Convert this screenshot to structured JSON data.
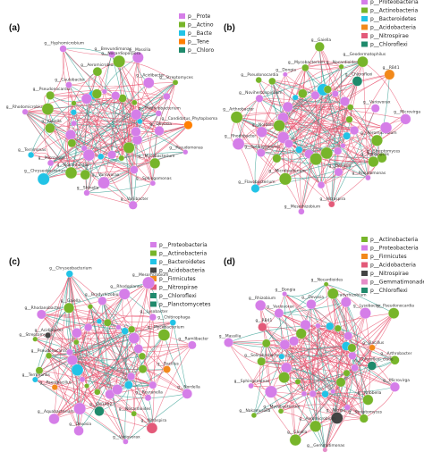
{
  "colors": {
    "proteobacteria": "#d57ee8",
    "actinobacteria": "#77b52a",
    "bacteroidetes": "#22c3e6",
    "acidobacteria": "#444444",
    "firmicutes": "#f2891b",
    "nitrospirae": "#e35a79",
    "chloroflexi": "#1f8a6c",
    "tenericutes": "#ff7f00",
    "gemmatimonadetes": "#e58ec8",
    "planctomycetes": "#1f8a6c",
    "edge_positive": "#e8536f",
    "edge_negative": "#2a9a8c"
  },
  "panels": [
    {
      "label": "(a)",
      "legend": [
        {
          "text": "p__Prote",
          "color": "proteobacteria"
        },
        {
          "text": "p__Actino",
          "color": "actinobacteria"
        },
        {
          "text": "p__Bacte",
          "color": "bacteroidetes"
        },
        {
          "text": "p__Tene",
          "color": "tenericutes"
        },
        {
          "text": "p__Chloro",
          "color": "chloroflexi"
        }
      ],
      "nodes": [
        {
          "text": "Candidatus_Phytoplasma",
          "color": "tenericutes"
        },
        {
          "text": "Chryseobacterium",
          "color": "bacteroidetes"
        },
        {
          "text": "Brevundimonas",
          "color": "proteobacteria"
        },
        {
          "text": "Sphingomonas",
          "color": "proteobacteria"
        },
        {
          "text": "Rhodomicrobium",
          "color": "proteobacteria"
        },
        {
          "text": "Streptomyces",
          "color": "actinobacteria"
        },
        {
          "text": "Shinella",
          "color": "proteobacteria"
        },
        {
          "text": "Hyphomicrobium",
          "color": "proteobacteria"
        },
        {
          "text": "Pseudomonas",
          "color": "proteobacteria"
        },
        {
          "text": "Terrimonas",
          "color": "bacteroidetes"
        },
        {
          "text": "Massilia",
          "color": "proteobacteria"
        },
        {
          "text": "Variibacter",
          "color": "proteobacteria"
        },
        {
          "text": "Pseudonocardia",
          "color": "actinobacteria"
        },
        {
          "text": "Methylobacterium",
          "color": "proteobacteria"
        },
        {
          "text": "Nocardioides",
          "color": "actinobacteria"
        },
        {
          "text": "Aeromicrobium",
          "color": "actinobacteria"
        },
        {
          "text": "Mycobacterium",
          "color": "actinobacteria"
        },
        {
          "text": "Gaiella",
          "color": "actinobacteria"
        },
        {
          "text": "Acidibacter",
          "color": "proteobacteria"
        },
        {
          "text": "Variovorax",
          "color": "proteobacteria"
        },
        {
          "text": "Caulobacter",
          "color": "proteobacteria"
        },
        {
          "text": "Devosia",
          "color": "proteobacteria"
        },
        {
          "text": "Microvirga",
          "color": "proteobacteria"
        },
        {
          "text": "Nocardioporpora",
          "color": "actinobacteria"
        }
      ]
    },
    {
      "label": "(b)",
      "legend": [
        {
          "text": "p__Proteobacteria",
          "color": "proteobacteria"
        },
        {
          "text": "p__Actinobacteria",
          "color": "actinobacteria"
        },
        {
          "text": "p__Bacteroidetes",
          "color": "bacteroidetes"
        },
        {
          "text": "p__Acidobacteria",
          "color": "firmicutes"
        },
        {
          "text": "p__Nitrospirae",
          "color": "nitrospirae"
        },
        {
          "text": "p__Chloroflexi",
          "color": "chloroflexi"
        }
      ],
      "nodes": [
        {
          "text": "Streptomyces",
          "color": "actinobacteria"
        },
        {
          "text": "Rhodobacter",
          "color": "proteobacteria"
        },
        {
          "text": "Geodermatophilus",
          "color": "actinobacteria"
        },
        {
          "text": "Nitrospira",
          "color": "nitrospirae"
        },
        {
          "text": "Pseudonocardia",
          "color": "actinobacteria"
        },
        {
          "text": "Microvirga",
          "color": "proteobacteria"
        },
        {
          "text": "Flavobacterium",
          "color": "bacteroidetes"
        },
        {
          "text": "Gaiella",
          "color": "actinobacteria"
        },
        {
          "text": "Pseudomonas",
          "color": "proteobacteria"
        },
        {
          "text": "Arthrobacter",
          "color": "actinobacteria"
        },
        {
          "text": "RB41",
          "color": "firmicutes"
        },
        {
          "text": "Mesorhizobium",
          "color": "proteobacteria"
        },
        {
          "text": "Dongia",
          "color": "proteobacteria"
        },
        {
          "text": "Aeromicrobium",
          "color": "actinobacteria"
        },
        {
          "text": "Sphingomonas",
          "color": "proteobacteria"
        },
        {
          "text": "Nocardioides",
          "color": "actinobacteria"
        },
        {
          "text": "Devosia",
          "color": "proteobacteria"
        },
        {
          "text": "Noviherbaspirillum",
          "color": "proteobacteria"
        },
        {
          "text": "Variovorax",
          "color": "proteobacteria"
        },
        {
          "text": "Microbacterium",
          "color": "actinobacteria"
        },
        {
          "text": "Mycobacterium",
          "color": "actinobacteria"
        },
        {
          "text": "Agromyces",
          "color": "actinobacteria"
        },
        {
          "text": "Nordella",
          "color": "proteobacteria"
        },
        {
          "text": "Chloroflexi",
          "color": "chloroflexi"
        }
      ]
    },
    {
      "label": "(c)",
      "legend": [
        {
          "text": "p__Proteobacteria",
          "color": "proteobacteria"
        },
        {
          "text": "p__Actinobacteria",
          "color": "actinobacteria"
        },
        {
          "text": "p__Bacteroidetes",
          "color": "bacteroidetes"
        },
        {
          "text": "p__Acidobacteria",
          "color": "acidobacteria"
        },
        {
          "text": "p__Firmicutes",
          "color": "firmicutes"
        },
        {
          "text": "p__Nitrospirae",
          "color": "nitrospirae"
        },
        {
          "text": "p__Chloroflexi",
          "color": "chloroflexi"
        },
        {
          "text": "p__Planctomycetes",
          "color": "planctomycetes"
        }
      ],
      "nodes": [
        {
          "text": "Nitrospira",
          "color": "nitrospirae"
        },
        {
          "text": "Streptomyces",
          "color": "actinobacteria"
        },
        {
          "text": "Chitinophaga",
          "color": "bacteroidetes"
        },
        {
          "text": "Devosia",
          "color": "proteobacteria"
        },
        {
          "text": "Chryseobacterium",
          "color": "bacteroidetes"
        },
        {
          "text": "Nordella",
          "color": "proteobacteria"
        },
        {
          "text": "Terrimonas",
          "color": "bacteroidetes"
        },
        {
          "text": "Mesorhizobium",
          "color": "proteobacteria"
        },
        {
          "text": "Variovorax",
          "color": "proteobacteria"
        },
        {
          "text": "Rhodanobacter",
          "color": "proteobacteria"
        },
        {
          "text": "Ramlibacter",
          "color": "proteobacteria"
        },
        {
          "text": "Aquabacterium",
          "color": "proteobacteria"
        },
        {
          "text": "Bradyrhizobium",
          "color": "proteobacteria"
        },
        {
          "text": "Reyranella",
          "color": "proteobacteria"
        },
        {
          "text": "Pseudonocardia",
          "color": "actinobacteria"
        },
        {
          "text": "Lysobacter",
          "color": "proteobacteria"
        },
        {
          "text": "SM1A02",
          "color": "planctomycetes"
        },
        {
          "text": "Gaiella",
          "color": "actinobacteria"
        },
        {
          "text": "Bacillus",
          "color": "firmicutes"
        },
        {
          "text": "Paenibacillus",
          "color": "firmicutes"
        },
        {
          "text": "Rhodoplanes",
          "color": "proteobacteria"
        },
        {
          "text": "Nocardioides",
          "color": "actinobacteria"
        },
        {
          "text": "Acidibacter",
          "color": "acidobacteria"
        },
        {
          "text": "Mycobacterium",
          "color": "actinobacteria"
        }
      ]
    },
    {
      "label": "(d)",
      "legend": [
        {
          "text": "p__Actinobacteria",
          "color": "actinobacteria"
        },
        {
          "text": "p__Proteobacteria",
          "color": "proteobacteria"
        },
        {
          "text": "p__Firmicutes",
          "color": "firmicutes"
        },
        {
          "text": "p__Acidobacteria",
          "color": "nitrospirae"
        },
        {
          "text": "p__Nitrospirae",
          "color": "acidobacteria"
        },
        {
          "text": "p__Gemmatimonadetes",
          "color": "gemmatimonadetes"
        },
        {
          "text": "p__Chloroflexi",
          "color": "chloroflexi"
        }
      ],
      "nodes": [
        {
          "text": "Gemmatimonas",
          "color": "gemmatimonadetes"
        },
        {
          "text": "Rhizobium",
          "color": "proteobacteria"
        },
        {
          "text": "Arthrobacter",
          "color": "actinobacteria"
        },
        {
          "text": "Nakamurella",
          "color": "actinobacteria"
        },
        {
          "text": "Nocardioides",
          "color": "actinobacteria"
        },
        {
          "text": "Streptomyces",
          "color": "actinobacteria"
        },
        {
          "text": "Massilia",
          "color": "proteobacteria"
        },
        {
          "text": "Pseudonocardia",
          "color": "actinobacteria"
        },
        {
          "text": "Gaiella",
          "color": "actinobacteria"
        },
        {
          "text": "Dongia",
          "color": "proteobacteria"
        },
        {
          "text": "Microvirga",
          "color": "proteobacteria"
        },
        {
          "text": "Sphingomonas",
          "color": "proteobacteria"
        },
        {
          "text": "Bradyrhizobium",
          "color": "proteobacteria"
        },
        {
          "text": "Nitrospira",
          "color": "acidobacteria"
        },
        {
          "text": "RB41",
          "color": "nitrospirae"
        },
        {
          "text": "Bacillus",
          "color": "firmicutes"
        },
        {
          "text": "Mycobacterium",
          "color": "actinobacteria"
        },
        {
          "text": "Devosia",
          "color": "proteobacteria"
        },
        {
          "text": "Kribbella",
          "color": "actinobacteria"
        },
        {
          "text": "Solirubrobacter",
          "color": "actinobacteria"
        },
        {
          "text": "Lysobacter",
          "color": "proteobacteria"
        },
        {
          "text": "Aeromicrobium",
          "color": "actinobacteria"
        },
        {
          "text": "Variovorax",
          "color": "proteobacteria"
        },
        {
          "text": "Chloroflexi_clade",
          "color": "chloroflexi"
        }
      ]
    }
  ]
}
